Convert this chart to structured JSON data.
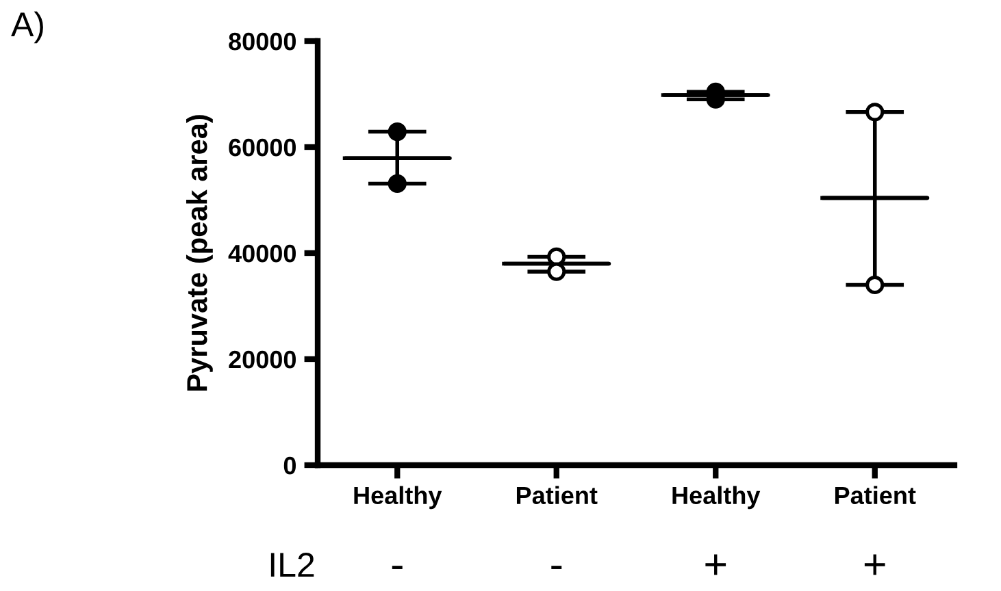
{
  "chart_data": {
    "type": "scatter",
    "ylabel": "Pyruvate (peak area)",
    "categories": [
      "Healthy",
      "Patient",
      "Healthy",
      "Patient"
    ],
    "ylim": [
      0,
      80000
    ],
    "yticks": [
      0,
      20000,
      40000,
      60000,
      80000
    ],
    "grid": false,
    "legend": false,
    "series": [
      {
        "marker": "circle",
        "color": "#000000",
        "colors": [
          "#000000",
          "#ffffff",
          "#000000",
          "#ffffff"
        ],
        "values": [
          62900,
          39300,
          70400,
          66600
        ]
      },
      {
        "marker": "circle",
        "color": "#000000",
        "colors": [
          "#000000",
          "#ffffff",
          "#000000",
          "#ffffff"
        ],
        "values": [
          53100,
          36500,
          69000,
          34000
        ]
      },
      {
        "type": "box",
        "color": "#000000",
        "boxes": [
          {
            "low": 53100,
            "q1": 57900,
            "median": 57900,
            "q3": 57900,
            "high": 62900
          },
          {
            "low": 36500,
            "q1": 38000,
            "median": 38000,
            "q3": 38000,
            "high": 39300
          },
          {
            "low": 69000,
            "q1": 69800,
            "median": 69800,
            "q3": 69800,
            "high": 70400
          },
          {
            "low": 34000,
            "q1": 50400,
            "median": 50400,
            "q3": 50400,
            "high": 66600
          }
        ]
      }
    ],
    "annotations": [
      "A)",
      "IL2",
      "-",
      "-",
      "+",
      "+"
    ]
  }
}
